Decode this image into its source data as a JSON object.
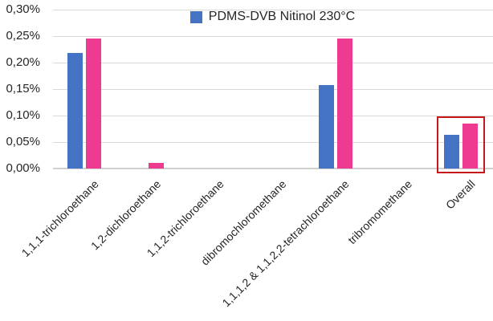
{
  "chart_data": {
    "type": "bar",
    "title": "",
    "categories": [
      "1,1,1-trichloroethane",
      "1,2-dichloroethane",
      "1,1,2-trichloroethane",
      "dibromochloromethane",
      "1,1,1,2 & 1,1,2,2-tetrachloroethane",
      "tribromomethane",
      "Overall"
    ],
    "series": [
      {
        "name": "PDMS-DVB Nitinol 230°C",
        "color": "#4472c4",
        "in_legend": true,
        "values": [
          0.218,
          0,
          0,
          0,
          0.157,
          0,
          0.063
        ]
      },
      {
        "name": "",
        "color": "#ee3a90",
        "in_legend": false,
        "values": [
          0.245,
          0.011,
          0,
          0,
          0.245,
          0,
          0.085
        ]
      }
    ],
    "value_unit": "%",
    "xlabel": "",
    "ylabel": "",
    "ylim": [
      0,
      0.3
    ],
    "ytick_step": 0.05,
    "ytick_labels": [
      "0,00%",
      "0,05%",
      "0,10%",
      "0,15%",
      "0,20%",
      "0,25%",
      "0,30%"
    ],
    "grid": true,
    "legend_position": "top-center",
    "annotation": {
      "type": "highlight-box",
      "category": "Overall",
      "color": "#c61818"
    }
  },
  "legend": {
    "label": "PDMS-DVB Nitinol 230°C",
    "marker_color": "#4472c4"
  },
  "colors": {
    "series_blue": "#4472c4",
    "series_pink": "#ee3a90",
    "highlight_red": "#c61818",
    "gridline": "#d9d9d9",
    "axis_line": "#d0d0d0",
    "text": "#262626",
    "background": "#ffffff"
  }
}
